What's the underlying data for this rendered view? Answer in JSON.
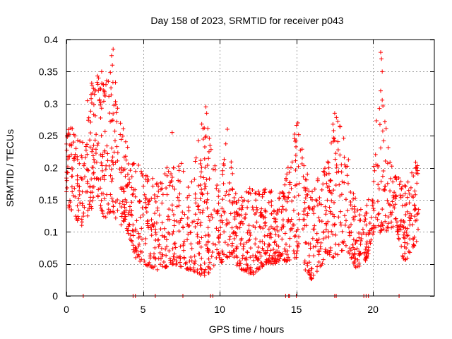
{
  "chart_data": {
    "type": "scatter",
    "title": "Day 158 of 2023, SRMTID for receiver p043",
    "xlabel": "GPS time / hours",
    "ylabel": "SRMTID / TECUs",
    "xlim": [
      0,
      24
    ],
    "ylim": [
      0,
      0.4
    ],
    "x_ticks": [
      0,
      5,
      10,
      15,
      20
    ],
    "x_tick_labels": [
      "0",
      "5",
      "10",
      "15",
      "20"
    ],
    "y_ticks": [
      0,
      0.05,
      0.1,
      0.15,
      0.2,
      0.25,
      0.3,
      0.35,
      0.4
    ],
    "y_tick_labels": [
      "0",
      "0.05",
      "0.1",
      "0.15",
      "0.2",
      "0.25",
      "0.3",
      "0.35",
      "0.4"
    ],
    "grid": true,
    "marker": "+",
    "color": "#ff0000",
    "series": [
      {
        "name": "SRMTID",
        "x_range": [
          0,
          23
        ],
        "envelope": [
          {
            "x": 0.0,
            "lo": 0.14,
            "hi": 0.27
          },
          {
            "x": 0.5,
            "lo": 0.13,
            "hi": 0.26
          },
          {
            "x": 1.0,
            "lo": 0.1,
            "hi": 0.24
          },
          {
            "x": 1.5,
            "lo": 0.13,
            "hi": 0.33
          },
          {
            "x": 2.0,
            "lo": 0.15,
            "hi": 0.35
          },
          {
            "x": 2.5,
            "lo": 0.12,
            "hi": 0.33
          },
          {
            "x": 3.0,
            "lo": 0.13,
            "hi": 0.385
          },
          {
            "x": 3.5,
            "lo": 0.11,
            "hi": 0.28
          },
          {
            "x": 4.0,
            "lo": 0.1,
            "hi": 0.24
          },
          {
            "x": 4.5,
            "lo": 0.06,
            "hi": 0.22
          },
          {
            "x": 5.0,
            "lo": 0.05,
            "hi": 0.19
          },
          {
            "x": 6.0,
            "lo": 0.04,
            "hi": 0.18
          },
          {
            "x": 7.0,
            "lo": 0.05,
            "hi": 0.23
          },
          {
            "x": 8.0,
            "lo": 0.04,
            "hi": 0.19
          },
          {
            "x": 9.0,
            "lo": 0.03,
            "hi": 0.295
          },
          {
            "x": 10.0,
            "lo": 0.05,
            "hi": 0.17
          },
          {
            "x": 10.5,
            "lo": 0.06,
            "hi": 0.26
          },
          {
            "x": 11.0,
            "lo": 0.05,
            "hi": 0.16
          },
          {
            "x": 12.0,
            "lo": 0.03,
            "hi": 0.17
          },
          {
            "x": 13.0,
            "lo": 0.05,
            "hi": 0.17
          },
          {
            "x": 14.0,
            "lo": 0.05,
            "hi": 0.16
          },
          {
            "x": 15.0,
            "lo": 0.06,
            "hi": 0.27
          },
          {
            "x": 16.0,
            "lo": 0.025,
            "hi": 0.17
          },
          {
            "x": 17.0,
            "lo": 0.06,
            "hi": 0.21
          },
          {
            "x": 17.5,
            "lo": 0.06,
            "hi": 0.285
          },
          {
            "x": 18.0,
            "lo": 0.07,
            "hi": 0.26
          },
          {
            "x": 19.0,
            "lo": 0.04,
            "hi": 0.14
          },
          {
            "x": 19.5,
            "lo": 0.05,
            "hi": 0.13
          },
          {
            "x": 20.0,
            "lo": 0.09,
            "hi": 0.19
          },
          {
            "x": 20.5,
            "lo": 0.1,
            "hi": 0.38
          },
          {
            "x": 21.0,
            "lo": 0.1,
            "hi": 0.23
          },
          {
            "x": 21.5,
            "lo": 0.11,
            "hi": 0.19
          },
          {
            "x": 22.0,
            "lo": 0.05,
            "hi": 0.18
          },
          {
            "x": 23.0,
            "lo": 0.09,
            "hi": 0.22
          }
        ],
        "peaks": [
          {
            "x": 3.05,
            "y": 0.385
          },
          {
            "x": 2.95,
            "y": 0.375
          },
          {
            "x": 3.0,
            "y": 0.36
          },
          {
            "x": 2.3,
            "y": 0.35
          },
          {
            "x": 2.1,
            "y": 0.34
          },
          {
            "x": 9.1,
            "y": 0.295
          },
          {
            "x": 9.15,
            "y": 0.285
          },
          {
            "x": 10.5,
            "y": 0.26
          },
          {
            "x": 15.1,
            "y": 0.27
          },
          {
            "x": 17.5,
            "y": 0.285
          },
          {
            "x": 20.5,
            "y": 0.38
          },
          {
            "x": 20.55,
            "y": 0.37
          },
          {
            "x": 20.6,
            "y": 0.35
          },
          {
            "x": 20.5,
            "y": 0.32
          },
          {
            "x": 6.9,
            "y": 0.255
          }
        ],
        "zero_values_x": [
          1.1,
          4.35,
          4.5,
          5.8,
          7.6,
          9.4,
          9.55,
          14.3,
          14.5,
          14.55,
          15.0,
          17.5,
          17.6,
          19.4,
          19.55,
          19.7,
          21.7
        ]
      }
    ]
  }
}
